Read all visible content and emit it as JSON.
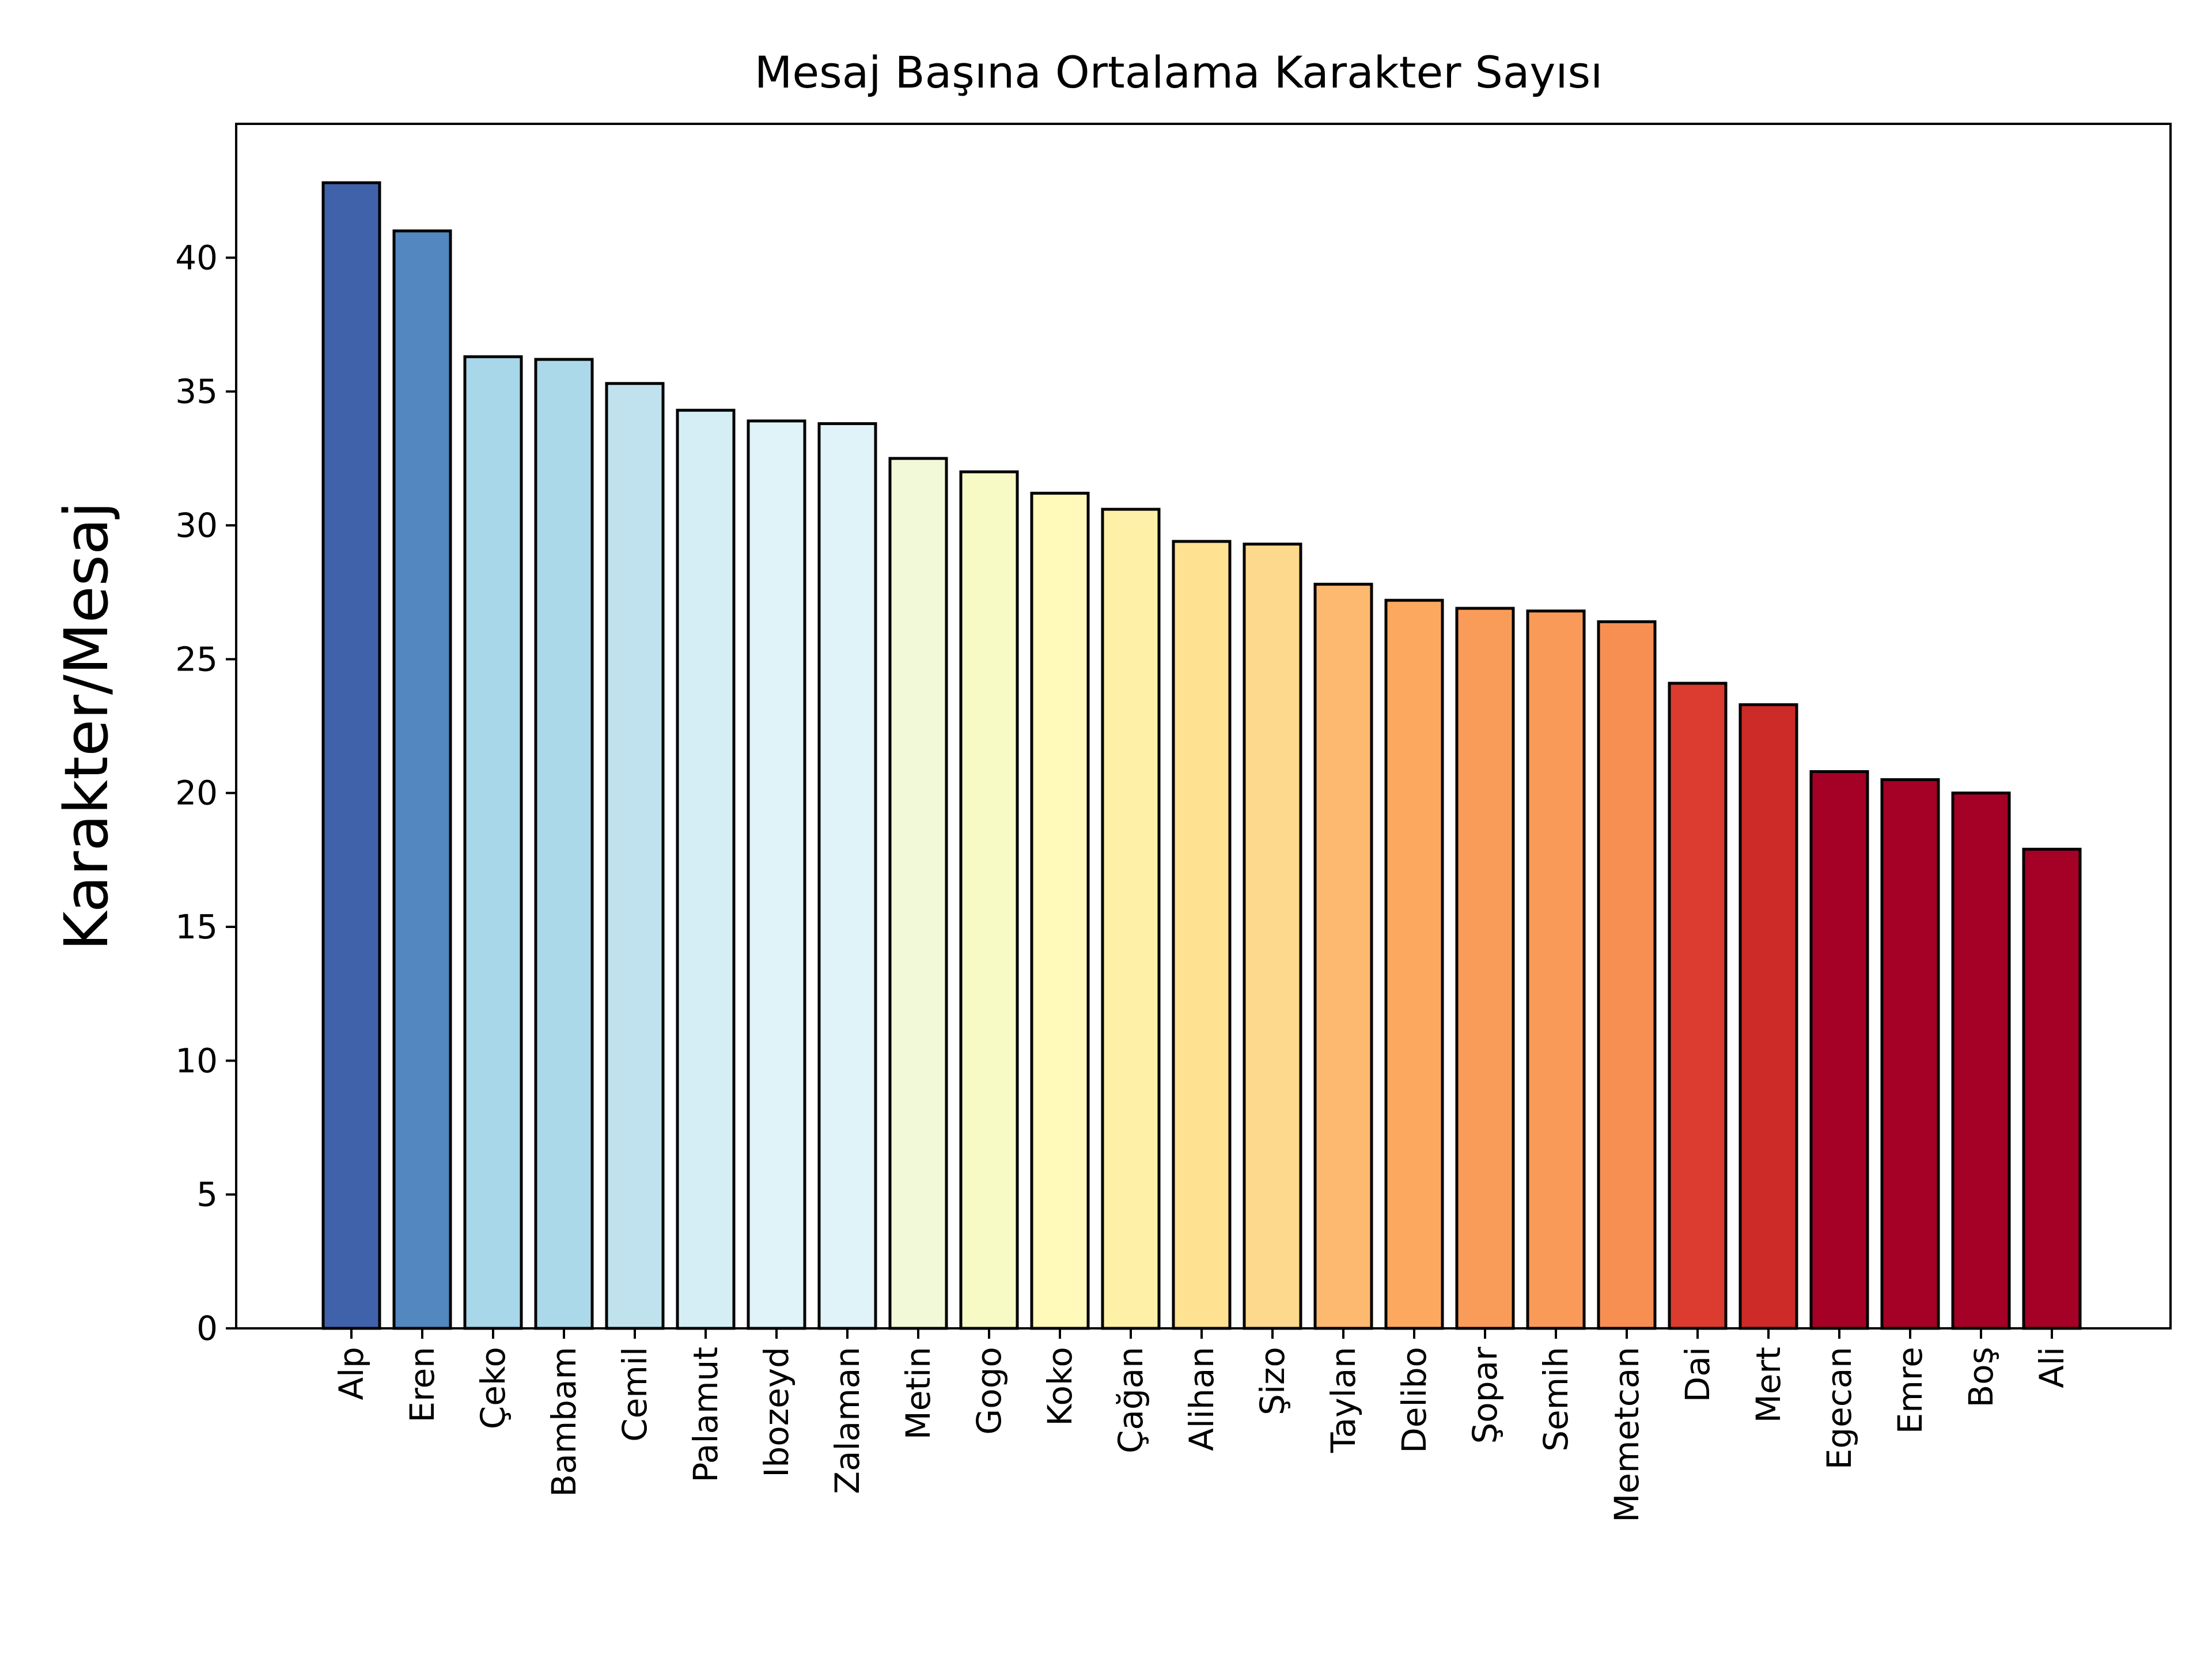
{
  "chart_data": {
    "type": "bar",
    "title": "Mesaj Başına Ortalama Karakter Sayısı",
    "xlabel": "",
    "ylabel": "Karakter/Mesaj",
    "ylim": [
      0,
      45
    ],
    "yticks": [
      0,
      5,
      10,
      15,
      20,
      25,
      30,
      35,
      40
    ],
    "grid": false,
    "categories": [
      "Alp",
      "Eren",
      "Çeko",
      "Bambam",
      "Cemil",
      "Palamut",
      "Ibozeyd",
      "Zalaman",
      "Metin",
      "Gogo",
      "Koko",
      "Çağan",
      "Alihan",
      "Şizo",
      "Taylan",
      "Delibo",
      "Şopar",
      "Semih",
      "Memetcan",
      "Dai",
      "Mert",
      "Egecan",
      "Emre",
      "Boş",
      "Ali"
    ],
    "values": [
      42.8,
      41.0,
      36.3,
      36.2,
      35.3,
      34.3,
      33.9,
      33.8,
      32.5,
      32.0,
      31.2,
      30.6,
      29.4,
      29.3,
      27.8,
      27.2,
      26.9,
      26.8,
      26.4,
      24.1,
      23.3,
      20.8,
      20.5,
      20.0,
      17.9
    ],
    "colors": [
      "#4062ab",
      "#5287bf",
      "#a7d7e8",
      "#acd9ea",
      "#bfe2ee",
      "#d5eef6",
      "#e0f3f8",
      "#e0f3f8",
      "#f2f9d9",
      "#f7fac5",
      "#fffab9",
      "#fff0a8",
      "#fee191",
      "#fdd98e",
      "#fdb96f",
      "#fca95f",
      "#fa9c59",
      "#f99a58",
      "#f88f52",
      "#db3c2f",
      "#cd2b28",
      "#a50026",
      "#a50026",
      "#a50026",
      "#a50026"
    ]
  }
}
